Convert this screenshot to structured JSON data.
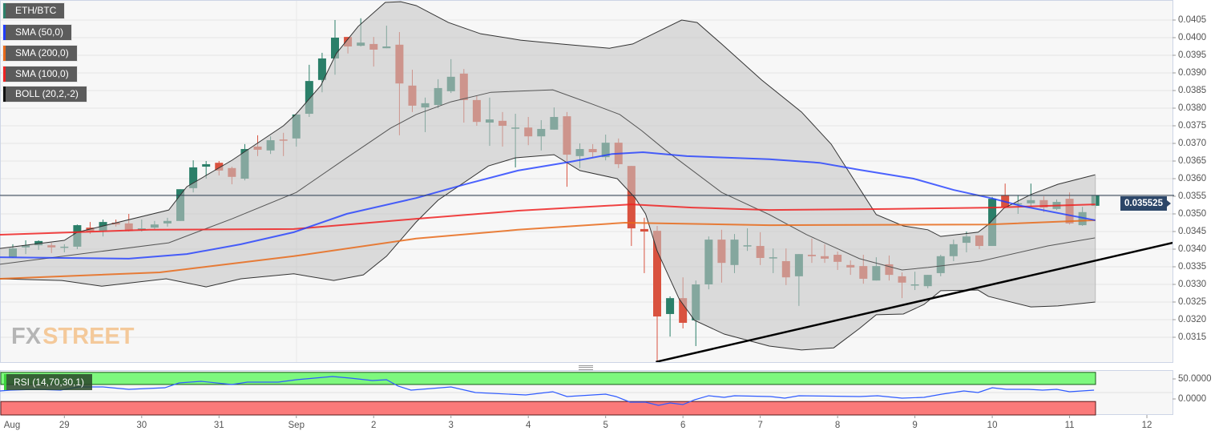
{
  "legend": {
    "pair": {
      "label": "ETH/BTC",
      "color": "#2b7f69"
    },
    "sma50": {
      "label": "SMA (50,0)",
      "color": "#1f3cff"
    },
    "sma200": {
      "label": "SMA (200,0)",
      "color": "#e86a1a"
    },
    "sma100": {
      "label": "SMA (100,0)",
      "color": "#ee2222"
    },
    "boll": {
      "label": "BOLL (20,2,-2)",
      "color": "#111111"
    },
    "rsi": {
      "label": "RSI (14,70,30,1)",
      "color": "#2f5bff"
    }
  },
  "watermark": {
    "fx": "FX",
    "street": "STREET"
  },
  "current_price": "0.035525",
  "chart_data": {
    "type": "candlestick",
    "title": "ETH/BTC",
    "interval_note": "6 candles per day",
    "ylim": [
      0.0308,
      0.04106
    ],
    "y_ticks": [
      "0.0405",
      "0.0400",
      "0.0395",
      "0.0390",
      "0.0385",
      "0.0380",
      "0.0375",
      "0.0370",
      "0.0365",
      "0.0360",
      "0.0355",
      "0.0350",
      "0.0345",
      "0.0340",
      "0.0335",
      "0.0330",
      "0.0325",
      "0.0320",
      "0.0315"
    ],
    "x_ticks": [
      {
        "label": "Aug",
        "index": -2
      },
      {
        "label": "29",
        "index": 4
      },
      {
        "label": "30",
        "index": 10
      },
      {
        "label": "31",
        "index": 16
      },
      {
        "label": "Sep",
        "index": 22
      },
      {
        "label": "2",
        "index": 28
      },
      {
        "label": "3",
        "index": 34
      },
      {
        "label": "4",
        "index": 40
      },
      {
        "label": "5",
        "index": 46
      },
      {
        "label": "6",
        "index": 52
      },
      {
        "label": "7",
        "index": 58
      },
      {
        "label": "8",
        "index": 64
      },
      {
        "label": "9",
        "index": 70
      },
      {
        "label": "10",
        "index": 76
      },
      {
        "label": "11",
        "index": 82
      },
      {
        "label": "12",
        "index": 88
      }
    ],
    "candles_ohlc": [
      [
        0.03377,
        0.03414,
        0.03375,
        0.03402
      ],
      [
        0.03405,
        0.03425,
        0.03386,
        0.03411
      ],
      [
        0.03411,
        0.03425,
        0.03398,
        0.03423
      ],
      [
        0.03411,
        0.03418,
        0.03389,
        0.03405
      ],
      [
        0.03405,
        0.03414,
        0.03391,
        0.03407
      ],
      [
        0.03407,
        0.0347,
        0.034,
        0.03468
      ],
      [
        0.03461,
        0.03477,
        0.03443,
        0.0345
      ],
      [
        0.03452,
        0.03484,
        0.03436,
        0.03477
      ],
      [
        0.03475,
        0.03484,
        0.03464,
        0.0347
      ],
      [
        0.03473,
        0.035,
        0.0345,
        0.03452
      ],
      [
        0.03455,
        0.03484,
        0.0345,
        0.03459
      ],
      [
        0.03461,
        0.0348,
        0.03457,
        0.0347
      ],
      [
        0.03473,
        0.03489,
        0.03464,
        0.0348
      ],
      [
        0.0348,
        0.0357,
        0.0348,
        0.0357
      ],
      [
        0.03573,
        0.03652,
        0.03561,
        0.03632
      ],
      [
        0.03634,
        0.0365,
        0.036,
        0.03641
      ],
      [
        0.03645,
        0.0365,
        0.03609,
        0.03623
      ],
      [
        0.0363,
        0.03634,
        0.03584,
        0.03605
      ],
      [
        0.036,
        0.03698,
        0.03595,
        0.03684
      ],
      [
        0.03691,
        0.03723,
        0.03664,
        0.03682
      ],
      [
        0.0368,
        0.0372,
        0.0367,
        0.03709
      ],
      [
        0.03711,
        0.0373,
        0.03664,
        0.03709
      ],
      [
        0.03714,
        0.03782,
        0.03691,
        0.03782
      ],
      [
        0.03784,
        0.03923,
        0.03775,
        0.03877
      ],
      [
        0.0388,
        0.03957,
        0.03845,
        0.03941
      ],
      [
        0.03941,
        0.0405,
        0.03895,
        0.04
      ],
      [
        0.04002,
        0.04002,
        0.03955,
        0.03975
      ],
      [
        0.03977,
        0.04055,
        0.03975,
        0.03986
      ],
      [
        0.03982,
        0.04002,
        0.03918,
        0.03966
      ],
      [
        0.0397,
        0.04034,
        0.0397,
        0.03975
      ],
      [
        0.0398,
        0.04016,
        0.03723,
        0.0387
      ],
      [
        0.03864,
        0.03909,
        0.03789,
        0.03807
      ],
      [
        0.03802,
        0.0383,
        0.03732,
        0.03814
      ],
      [
        0.03809,
        0.03882,
        0.038,
        0.03857
      ],
      [
        0.03848,
        0.03939,
        0.03843,
        0.03889
      ],
      [
        0.03898,
        0.03911,
        0.03759,
        0.03823
      ],
      [
        0.03823,
        0.03834,
        0.0375,
        0.03761
      ],
      [
        0.03759,
        0.0383,
        0.03693,
        0.03768
      ],
      [
        0.03764,
        0.03789,
        0.03691,
        0.0375
      ],
      [
        0.03745,
        0.03784,
        0.03632,
        0.03745
      ],
      [
        0.03745,
        0.03775,
        0.03695,
        0.0372
      ],
      [
        0.0372,
        0.03766,
        0.0368,
        0.03741
      ],
      [
        0.03739,
        0.03802,
        0.03739,
        0.03775
      ],
      [
        0.03777,
        0.03789,
        0.03577,
        0.03668
      ],
      [
        0.03664,
        0.037,
        0.0363,
        0.03684
      ],
      [
        0.03684,
        0.03698,
        0.03661,
        0.03675
      ],
      [
        0.03661,
        0.03725,
        0.03652,
        0.03702
      ],
      [
        0.03702,
        0.03714,
        0.0363,
        0.03641
      ],
      [
        0.03636,
        0.03636,
        0.03409,
        0.03459
      ],
      [
        0.03457,
        0.03489,
        0.03332,
        0.0345
      ],
      [
        0.03452,
        0.03466,
        0.0308,
        0.03209
      ],
      [
        0.03216,
        0.03266,
        0.03152,
        0.03261
      ],
      [
        0.03261,
        0.0332,
        0.03175,
        0.03191
      ],
      [
        0.03198,
        0.03311,
        0.03125,
        0.033
      ],
      [
        0.033,
        0.03436,
        0.03286,
        0.03427
      ],
      [
        0.03427,
        0.03455,
        0.03305,
        0.03361
      ],
      [
        0.03355,
        0.03443,
        0.03332,
        0.03427
      ],
      [
        0.03411,
        0.03459,
        0.03395,
        0.03411
      ],
      [
        0.03409,
        0.03448,
        0.03355,
        0.03375
      ],
      [
        0.03377,
        0.03402,
        0.03332,
        0.03377
      ],
      [
        0.03366,
        0.03402,
        0.03298,
        0.0332
      ],
      [
        0.03323,
        0.03386,
        0.03239,
        0.03386
      ],
      [
        0.03384,
        0.0343,
        0.03361,
        0.0338
      ],
      [
        0.0338,
        0.03414,
        0.03361,
        0.03373
      ],
      [
        0.03384,
        0.03393,
        0.03341,
        0.03364
      ],
      [
        0.03355,
        0.03368,
        0.03327,
        0.03348
      ],
      [
        0.03352,
        0.03384,
        0.03302,
        0.03316
      ],
      [
        0.03311,
        0.03377,
        0.03311,
        0.03352
      ],
      [
        0.03357,
        0.03382,
        0.03311,
        0.03327
      ],
      [
        0.03323,
        0.03334,
        0.03261,
        0.03305
      ],
      [
        0.033,
        0.03336,
        0.03284,
        0.033
      ],
      [
        0.03295,
        0.03327,
        0.03289,
        0.03327
      ],
      [
        0.03332,
        0.03384,
        0.03323,
        0.0338
      ],
      [
        0.0338,
        0.03427,
        0.03366,
        0.03414
      ],
      [
        0.03418,
        0.0345,
        0.03391,
        0.03436
      ],
      [
        0.03439,
        0.03439,
        0.034,
        0.03409
      ],
      [
        0.03409,
        0.03548,
        0.03409,
        0.03543
      ],
      [
        0.03552,
        0.03586,
        0.03516,
        0.0352
      ],
      [
        0.0353,
        0.03552,
        0.035,
        0.0353
      ],
      [
        0.0353,
        0.03586,
        0.0352,
        0.03539
      ],
      [
        0.03539,
        0.0355,
        0.03505,
        0.03518
      ],
      [
        0.03514,
        0.03541,
        0.03511,
        0.03534
      ],
      [
        0.03543,
        0.03561,
        0.0347,
        0.03473
      ],
      [
        0.03468,
        0.0352,
        0.03466,
        0.03505
      ],
      [
        0.03523,
        0.03552,
        0.03516,
        0.035525
      ]
    ],
    "bollinger": {
      "upper": [
        [
          -1,
          0.03402
        ],
        [
          4,
          0.03425
        ],
        [
          5,
          0.03448
        ],
        [
          12.1,
          0.03511
        ],
        [
          13.5,
          0.03577
        ],
        [
          17,
          0.03652
        ],
        [
          21,
          0.0375
        ],
        [
          22,
          0.03784
        ],
        [
          23.9,
          0.03864
        ],
        [
          25.1,
          0.03955
        ],
        [
          26.8,
          0.04032
        ],
        [
          28.9,
          0.041
        ],
        [
          30.1,
          0.04102
        ],
        [
          31.3,
          0.04091
        ],
        [
          33.8,
          0.04043
        ],
        [
          36.3,
          0.04011
        ],
        [
          39.4,
          0.03993
        ],
        [
          42.5,
          0.03982
        ],
        [
          46.3,
          0.0397
        ],
        [
          48.1,
          0.03982
        ],
        [
          50,
          0.04016
        ],
        [
          51.9,
          0.0405
        ],
        [
          53.1,
          0.04043
        ],
        [
          55,
          0.03982
        ],
        [
          58.1,
          0.0388
        ],
        [
          61.2,
          0.03789
        ],
        [
          63.5,
          0.03698
        ],
        [
          67,
          0.03498
        ],
        [
          69.1,
          0.03466
        ],
        [
          71,
          0.03455
        ],
        [
          72,
          0.03436
        ],
        [
          74.9,
          0.03448
        ],
        [
          75.7,
          0.0347
        ],
        [
          76.9,
          0.03516
        ],
        [
          79,
          0.03555
        ],
        [
          81.1,
          0.03584
        ],
        [
          84,
          0.03611
        ]
      ],
      "middle": [
        [
          -1,
          0.03357
        ],
        [
          5.2,
          0.03386
        ],
        [
          12.1,
          0.03418
        ],
        [
          17,
          0.03486
        ],
        [
          22,
          0.03561
        ],
        [
          25.9,
          0.03659
        ],
        [
          29.3,
          0.03743
        ],
        [
          31.3,
          0.03782
        ],
        [
          34,
          0.03818
        ],
        [
          37.1,
          0.03845
        ],
        [
          41.9,
          0.03852
        ],
        [
          45,
          0.03811
        ],
        [
          47.1,
          0.03782
        ],
        [
          48.8,
          0.03736
        ],
        [
          50.6,
          0.03682
        ],
        [
          55,
          0.03561
        ],
        [
          58.7,
          0.03498
        ],
        [
          61.6,
          0.03441
        ],
        [
          65.7,
          0.03373
        ],
        [
          69,
          0.03341
        ],
        [
          71,
          0.03348
        ],
        [
          75.1,
          0.03366
        ],
        [
          80.3,
          0.03409
        ],
        [
          84,
          0.03432
        ]
      ],
      "lower": [
        [
          -1,
          0.03316
        ],
        [
          3.8,
          0.03311
        ],
        [
          6.9,
          0.03295
        ],
        [
          11.9,
          0.03316
        ],
        [
          15,
          0.03293
        ],
        [
          17.7,
          0.03316
        ],
        [
          21.8,
          0.0333
        ],
        [
          24.9,
          0.03311
        ],
        [
          27.2,
          0.03327
        ],
        [
          29,
          0.0338
        ],
        [
          31.3,
          0.03477
        ],
        [
          33,
          0.03539
        ],
        [
          36.9,
          0.03636
        ],
        [
          39,
          0.03659
        ],
        [
          42,
          0.03668
        ],
        [
          44,
          0.03623
        ],
        [
          46.9,
          0.036
        ],
        [
          48.3,
          0.03545
        ],
        [
          49.1,
          0.035
        ],
        [
          50,
          0.03395
        ],
        [
          51.7,
          0.03259
        ],
        [
          52.9,
          0.03198
        ],
        [
          55.2,
          0.03159
        ],
        [
          58.7,
          0.03125
        ],
        [
          61.2,
          0.03114
        ],
        [
          63.7,
          0.0312
        ],
        [
          65.7,
          0.03175
        ],
        [
          67,
          0.03214
        ],
        [
          69.1,
          0.03216
        ],
        [
          70.7,
          0.03243
        ],
        [
          72,
          0.03282
        ],
        [
          74.9,
          0.03284
        ],
        [
          75.7,
          0.03266
        ],
        [
          79,
          0.03236
        ],
        [
          81.1,
          0.03239
        ],
        [
          84,
          0.0325
        ]
      ]
    },
    "sma50": [
      [
        -1,
        0.03377
      ],
      [
        9,
        0.03373
      ],
      [
        13.5,
        0.03386
      ],
      [
        17.7,
        0.03414
      ],
      [
        21.8,
        0.03448
      ],
      [
        25.9,
        0.035
      ],
      [
        31.3,
        0.03545
      ],
      [
        35.1,
        0.03584
      ],
      [
        39.2,
        0.03623
      ],
      [
        43.3,
        0.03648
      ],
      [
        46.5,
        0.0367
      ],
      [
        48.9,
        0.03675
      ],
      [
        52.3,
        0.03664
      ],
      [
        58.7,
        0.03655
      ],
      [
        62.6,
        0.03645
      ],
      [
        65.7,
        0.03625
      ],
      [
        69.9,
        0.036
      ],
      [
        73,
        0.03568
      ],
      [
        76.1,
        0.03543
      ],
      [
        78.2,
        0.03523
      ],
      [
        84,
        0.03482
      ]
    ],
    "sma100": [
      [
        -1,
        0.03441
      ],
      [
        10.6,
        0.03455
      ],
      [
        21.8,
        0.03457
      ],
      [
        31.3,
        0.03486
      ],
      [
        39.2,
        0.03509
      ],
      [
        48,
        0.03527
      ],
      [
        52.7,
        0.03518
      ],
      [
        58.7,
        0.03511
      ],
      [
        67.8,
        0.03514
      ],
      [
        76.1,
        0.03518
      ],
      [
        84,
        0.03527
      ]
    ],
    "sma200": [
      [
        -1,
        0.03316
      ],
      [
        11.4,
        0.03334
      ],
      [
        21.8,
        0.0338
      ],
      [
        31.3,
        0.0343
      ],
      [
        39.2,
        0.03455
      ],
      [
        47.5,
        0.03475
      ],
      [
        58.7,
        0.03468
      ],
      [
        75.7,
        0.0347
      ],
      [
        84,
        0.03482
      ]
    ],
    "trendline": [
      [
        49.9,
        0.0308
      ],
      [
        90,
        0.03418
      ]
    ],
    "rsi": {
      "ticks": [
        "50.0000",
        "0.0000"
      ],
      "overbought": 70,
      "oversold": 30,
      "values": [
        [
          -1,
          53.6
        ],
        [
          -0.2,
          55.4
        ],
        [
          1.8,
          57.1
        ],
        [
          3.7,
          55.4
        ],
        [
          5.1,
          62.5
        ],
        [
          7,
          62.5
        ],
        [
          9,
          57.1
        ],
        [
          11.8,
          60.7
        ],
        [
          12.9,
          71.4
        ],
        [
          14.6,
          75
        ],
        [
          17,
          67.9
        ],
        [
          18.2,
          73.2
        ],
        [
          20.6,
          73.2
        ],
        [
          22,
          78.6
        ],
        [
          24.8,
          85.7
        ],
        [
          26.2,
          82.1
        ],
        [
          27.9,
          76.8
        ],
        [
          29,
          78.6
        ],
        [
          29.9,
          64.3
        ],
        [
          30.9,
          55.4
        ],
        [
          34,
          62.5
        ],
        [
          35.9,
          50
        ],
        [
          39.8,
          44.6
        ],
        [
          41.9,
          51.8
        ],
        [
          43,
          41.1
        ],
        [
          46,
          46.4
        ],
        [
          46.8,
          41.1
        ],
        [
          47.9,
          28.6
        ],
        [
          49.1,
          28.6
        ],
        [
          50.1,
          21.4
        ],
        [
          51,
          26.8
        ],
        [
          52,
          23.2
        ],
        [
          52.9,
          33.9
        ],
        [
          54,
          42.9
        ],
        [
          55.2,
          39.3
        ],
        [
          56,
          42.9
        ],
        [
          58.8,
          41.1
        ],
        [
          59.9,
          37.5
        ],
        [
          61,
          42.9
        ],
        [
          65.7,
          41.1
        ],
        [
          67.1,
          42.9
        ],
        [
          69,
          37.5
        ],
        [
          70.7,
          39.3
        ],
        [
          72.1,
          46.4
        ],
        [
          73.8,
          53.6
        ],
        [
          74.9,
          50
        ],
        [
          76,
          60.7
        ],
        [
          77.1,
          57.1
        ],
        [
          78.8,
          57.1
        ],
        [
          79.9,
          55.4
        ],
        [
          81,
          57.1
        ],
        [
          82,
          51.8
        ],
        [
          83.9,
          55.4
        ]
      ]
    },
    "grid": true
  }
}
